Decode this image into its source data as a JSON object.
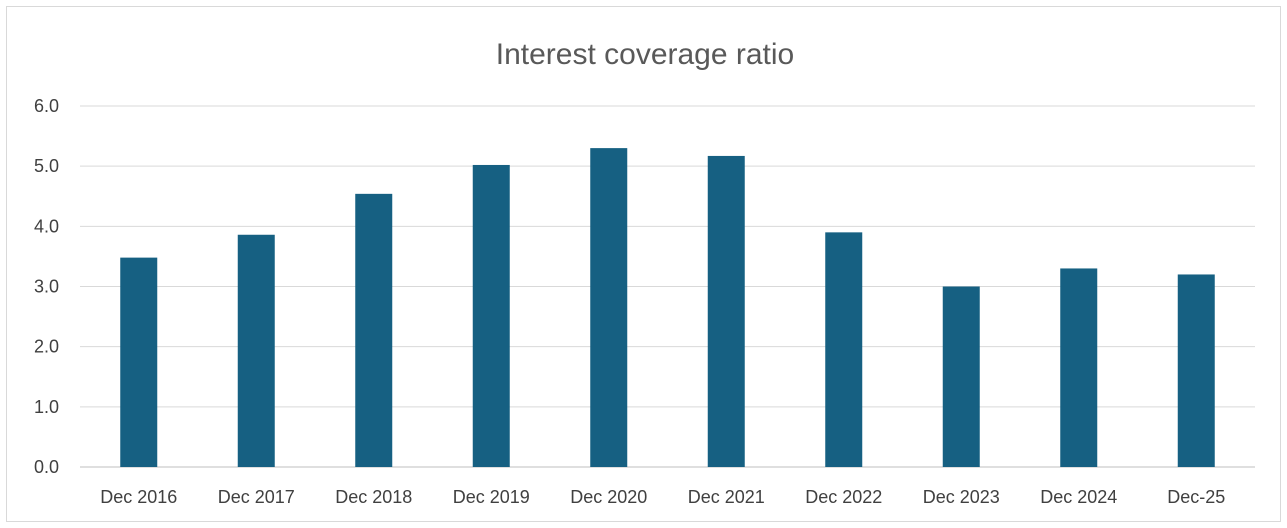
{
  "chart_data": {
    "type": "bar",
    "title": "Interest coverage ratio",
    "xlabel": "",
    "ylabel": "",
    "categories": [
      "Dec 2016",
      "Dec 2017",
      "Dec 2018",
      "Dec 2019",
      "Dec 2020",
      "Dec 2021",
      "Dec 2022",
      "Dec 2023",
      "Dec 2024",
      "Dec-25"
    ],
    "values": [
      3.48,
      3.86,
      4.54,
      5.02,
      5.3,
      5.17,
      3.9,
      3.0,
      3.3,
      3.2
    ],
    "ylim": [
      0,
      6
    ],
    "yticks": [
      "0.0",
      "1.0",
      "2.0",
      "3.0",
      "4.0",
      "5.0",
      "6.0"
    ],
    "grid": true,
    "legend": "none",
    "colors": {
      "bar": "#166082"
    }
  }
}
